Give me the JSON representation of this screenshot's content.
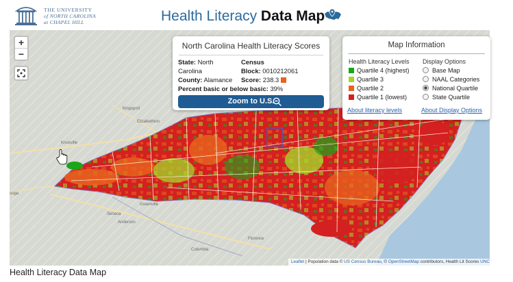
{
  "header": {
    "university_line1": "THE UNIVERSITY",
    "university_line2": "of NORTH CAROLINA",
    "university_line3": "at CHAPEL HILL",
    "heading_prefix": "Health Literacy ",
    "heading_bold": "Data Map",
    "heading_icon": "us-map-pin-icon"
  },
  "map_controls": {
    "zoom_in": "+",
    "zoom_out": "−",
    "fit_icon": "fit-bounds-icon"
  },
  "scores_panel": {
    "title": "North Carolina Health Literacy Scores",
    "state_label": "State:",
    "state_value_1": "North",
    "state_value_2": "Carolina",
    "census_label": "Census",
    "block_label": "Block:",
    "block_value": "0010212061",
    "county_label": "County:",
    "county_value": "Alamance",
    "score_label": "Score:",
    "score_value": "238.3",
    "score_color": "#e8641e",
    "percent_label": "Percent basic or below basic:",
    "percent_value": "39%",
    "zoom_button": "Zoom to U.S.",
    "zoom_button_icon": "zoom-out-icon"
  },
  "info_panel": {
    "title": "Map Information",
    "levels_heading": "Health Literacy Levels",
    "levels": [
      {
        "label": "Quartile 4 (highest)",
        "color": "#1aa51a"
      },
      {
        "label": "Quartile 3",
        "color": "#a6d52a"
      },
      {
        "label": "Quartile 2",
        "color": "#e8641e"
      },
      {
        "label": "Quartile 1 (lowest)",
        "color": "#d42020"
      }
    ],
    "display_heading": "Display Options",
    "display_options": [
      {
        "label": "Base Map",
        "selected": false
      },
      {
        "label": "NAAL Categories",
        "selected": false
      },
      {
        "label": "National Quartile",
        "selected": true
      },
      {
        "label": "State Quartile",
        "selected": false
      }
    ],
    "link_levels": "About literacy levels",
    "link_display": "About Display Options"
  },
  "place_labels": [
    "Kingsport",
    "Elizabethton",
    "Knoxville",
    "ooga",
    "Greenville",
    "Seneca",
    "Anderson",
    "Florence",
    "Columbia"
  ],
  "attribution": {
    "leaflet": "Leaflet",
    "sep1": " | Population data © ",
    "census": "US Census Bureau",
    "sep2": ", © ",
    "osm": "OpenStreetMap",
    "rest": " contributors, Health Lit Scores ",
    "unc": "UNC"
  },
  "caption": "Health Literacy Data Map"
}
